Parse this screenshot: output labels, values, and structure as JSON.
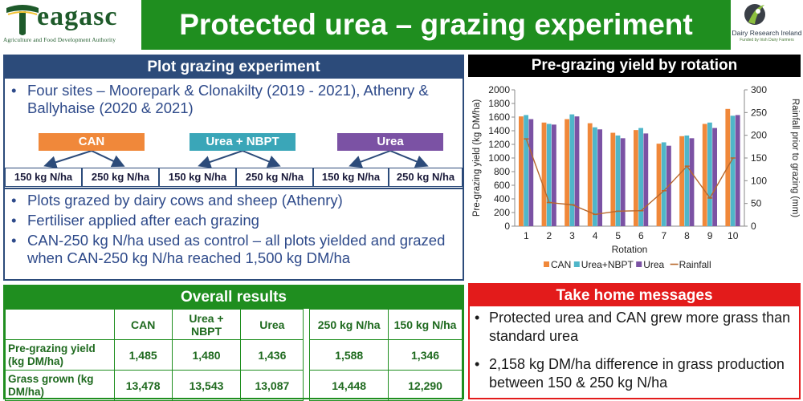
{
  "header": {
    "title": "Protected urea – grazing experiment",
    "logo_left_word": "eagasc",
    "logo_left_tagline": "Agriculture and Food Development Authority",
    "logo_right_name": "Dairy Research Ireland",
    "logo_right_sub": "Funded by Irish Dairy Farmers"
  },
  "plot": {
    "heading": "Plot grazing experiment",
    "top_bullets": [
      "Four sites – Moorepark & Clonakilty (2019 - 2021), Athenry & Ballyhaise (2020 & 2021)"
    ],
    "treatments": [
      "CAN",
      "Urea + NBPT",
      "Urea"
    ],
    "rates": [
      "150 kg N/ha",
      "250 kg N/ha",
      "150 kg N/ha",
      "250 kg N/ha",
      "150 kg N/ha",
      "250 kg N/ha"
    ],
    "bottom_bullets": [
      "Plots grazed by dairy cows and sheep (Athenry)",
      "Fertiliser applied after each grazing",
      "CAN-250 kg N/ha used as control – all plots yielded and grazed when CAN-250 kg N/ha reached 1,500 kg DM/ha"
    ]
  },
  "chart": {
    "heading": "Pre-grazing yield by rotation"
  },
  "chart_data": {
    "type": "bar",
    "title": "Pre-grazing yield by rotation",
    "xlabel": "Rotation",
    "ylabel": "Pre-grazing yield (kg DM/ha)",
    "y2label": "Rainfall prior to grazing (mm)",
    "ylim": [
      0,
      2000
    ],
    "y2lim": [
      0,
      300
    ],
    "yticks": [
      0,
      200,
      400,
      600,
      800,
      1000,
      1200,
      1400,
      1600,
      1800,
      2000
    ],
    "y2ticks": [
      0,
      50,
      100,
      150,
      200,
      250,
      300
    ],
    "categories": [
      "1",
      "2",
      "3",
      "4",
      "5",
      "6",
      "7",
      "8",
      "9",
      "10"
    ],
    "series": [
      {
        "name": "CAN",
        "kind": "bar",
        "color": "#f0883a",
        "values": [
          1610,
          1520,
          1570,
          1510,
          1370,
          1410,
          1210,
          1320,
          1500,
          1720
        ]
      },
      {
        "name": "Urea+NBPT",
        "kind": "bar",
        "color": "#4fb6c9",
        "values": [
          1630,
          1500,
          1640,
          1450,
          1330,
          1440,
          1230,
          1330,
          1520,
          1620
        ]
      },
      {
        "name": "Urea",
        "kind": "bar",
        "color": "#7b52a4",
        "values": [
          1570,
          1490,
          1610,
          1420,
          1290,
          1360,
          1180,
          1290,
          1440,
          1630
        ]
      },
      {
        "name": "Rainfall",
        "kind": "line",
        "axis": "right",
        "color": "#b8682c",
        "values": [
          192,
          52,
          47,
          26,
          33,
          34,
          78,
          132,
          62,
          150
        ]
      }
    ],
    "legend": "bottom"
  },
  "results": {
    "heading": "Overall results",
    "columns": [
      "CAN",
      "Urea + NBPT",
      "Urea",
      "250 kg N/ha",
      "150 kg N/ha"
    ],
    "rows": [
      {
        "label": "Pre-grazing yield (kg DM/ha)",
        "values": [
          "1,485",
          "1,480",
          "1,436",
          "1,588",
          "1,346"
        ]
      },
      {
        "label": "Grass grown (kg DM/ha)",
        "values": [
          "13,478",
          "13,543",
          "13,087",
          "14,448",
          "12,290"
        ]
      }
    ]
  },
  "take_home": {
    "heading": "Take home messages",
    "bullets": [
      "Protected urea and CAN grew more grass than standard urea",
      "2,158 kg DM/ha difference in grass production between 150 & 250 kg N/ha"
    ]
  }
}
